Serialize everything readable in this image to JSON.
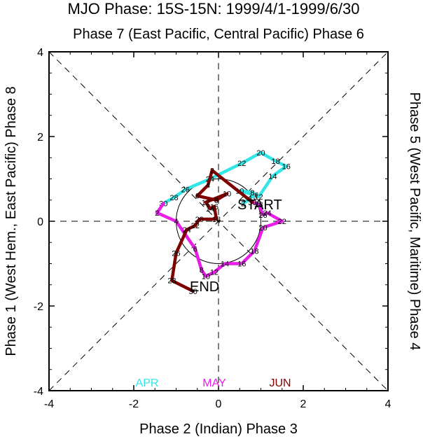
{
  "chart_data": {
    "type": "line",
    "title": "MJO Phase: 15S-15N: 1999/4/1-1999/6/30",
    "top_label": "Phase 7 (East Pacific, Central Pacific) Phase 6",
    "bottom_label": "Phase 2 (Indian) Phase 3",
    "left_label": "Phase 1 (West Hem., East Pacific) Phase 8",
    "right_label": "Phase 5 (West Pacific, Maritime) Phase 4",
    "xlim": [
      -4,
      4
    ],
    "ylim": [
      -4,
      4
    ],
    "x_ticks": [
      "-4",
      "-2",
      "0",
      "2",
      "4"
    ],
    "y_ticks": [
      "-4",
      "-2",
      "0",
      "2",
      "4"
    ],
    "start_label": "START",
    "end_label": "END",
    "legend": [
      "APR",
      "MAY",
      "JUN"
    ],
    "colors": {
      "APR": "#33e6e6",
      "MAY": "#e81de8",
      "JUN": "#800000"
    },
    "series": [
      {
        "name": "APR",
        "points": [
          {
            "x": 0.68,
            "y": 0.48,
            "label": ""
          },
          {
            "x": 0.58,
            "y": 0.42,
            "label": "2"
          },
          {
            "x": 0.74,
            "y": 0.55,
            "label": "4"
          },
          {
            "x": 0.9,
            "y": 0.62,
            "label": "6"
          },
          {
            "x": 0.8,
            "y": 0.68,
            "label": "8"
          },
          {
            "x": 0.5,
            "y": 0.72,
            "label": "10"
          },
          {
            "x": 0.95,
            "y": 0.58,
            "label": "12"
          },
          {
            "x": 1.28,
            "y": 1.07,
            "label": "14"
          },
          {
            "x": 1.6,
            "y": 1.3,
            "label": "16"
          },
          {
            "x": 1.35,
            "y": 1.42,
            "label": "18"
          },
          {
            "x": 1.0,
            "y": 1.62,
            "label": "20"
          },
          {
            "x": 0.55,
            "y": 1.37,
            "label": "22"
          },
          {
            "x": -0.2,
            "y": 1.0,
            "label": "24"
          },
          {
            "x": -0.78,
            "y": 0.75,
            "label": "26"
          },
          {
            "x": -1.05,
            "y": 0.56,
            "label": "28"
          },
          {
            "x": -1.3,
            "y": 0.42,
            "label": "30"
          }
        ]
      },
      {
        "name": "MAY",
        "points": [
          {
            "x": -1.3,
            "y": 0.42,
            "label": ""
          },
          {
            "x": -1.45,
            "y": 0.2,
            "label": "2"
          },
          {
            "x": -1.0,
            "y": 0.0,
            "label": "4"
          },
          {
            "x": -0.55,
            "y": -0.65,
            "label": "6"
          },
          {
            "x": -0.4,
            "y": -1.15,
            "label": "8"
          },
          {
            "x": -0.3,
            "y": -1.3,
            "label": "10"
          },
          {
            "x": -0.1,
            "y": -1.2,
            "label": "12"
          },
          {
            "x": 0.15,
            "y": -1.0,
            "label": "14"
          },
          {
            "x": 0.55,
            "y": -1.0,
            "label": "16"
          },
          {
            "x": 0.85,
            "y": -0.7,
            "label": "18"
          },
          {
            "x": 1.05,
            "y": -0.15,
            "label": "20"
          },
          {
            "x": 1.5,
            "y": 0.0,
            "label": "22"
          },
          {
            "x": 1.15,
            "y": 0.2,
            "label": "24"
          },
          {
            "x": 1.05,
            "y": 0.15,
            "label": "26"
          },
          {
            "x": 0.95,
            "y": 0.4,
            "label": "28"
          },
          {
            "x": 0.8,
            "y": 0.45,
            "label": "30"
          }
        ]
      },
      {
        "name": "JUN",
        "points": [
          {
            "x": 0.8,
            "y": 0.45,
            "label": ""
          },
          {
            "x": -0.15,
            "y": 1.2,
            "label": "2"
          },
          {
            "x": -0.25,
            "y": 0.85,
            "label": "4"
          },
          {
            "x": -0.5,
            "y": 0.6,
            "label": "6"
          },
          {
            "x": -0.05,
            "y": 0.5,
            "label": "8"
          },
          {
            "x": 0.2,
            "y": 0.65,
            "label": "10"
          },
          {
            "x": -0.3,
            "y": 0.45,
            "label": "12"
          },
          {
            "x": -0.2,
            "y": 0.3,
            "label": "14"
          },
          {
            "x": -0.1,
            "y": 0.35,
            "label": "16"
          },
          {
            "x": -0.05,
            "y": 0.05,
            "label": "18"
          },
          {
            "x": -0.45,
            "y": 0.05,
            "label": "20"
          },
          {
            "x": -0.55,
            "y": -0.1,
            "label": "22"
          },
          {
            "x": -0.75,
            "y": -0.2,
            "label": "24"
          },
          {
            "x": -1.0,
            "y": -0.75,
            "label": "26"
          },
          {
            "x": -1.1,
            "y": -1.4,
            "label": "28"
          },
          {
            "x": -0.6,
            "y": -1.65,
            "label": "30"
          }
        ]
      }
    ]
  }
}
